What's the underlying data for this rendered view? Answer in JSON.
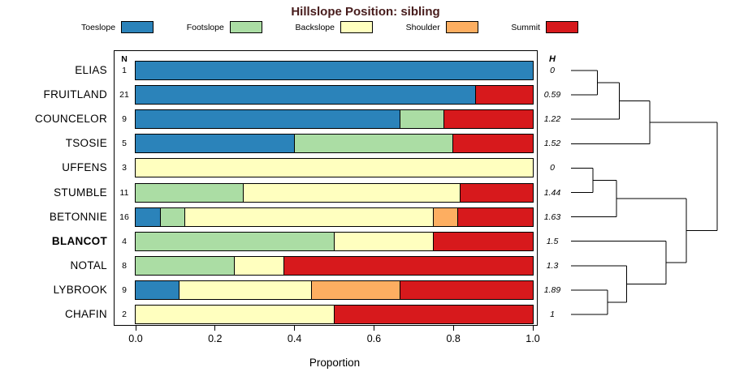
{
  "title": "Hillslope Position: sibling",
  "legend": [
    {
      "label": "Toeslope",
      "color": "#2B83BA"
    },
    {
      "label": "Footslope",
      "color": "#ABDDA4"
    },
    {
      "label": "Backslope",
      "color": "#FFFFBF"
    },
    {
      "label": "Shoulder",
      "color": "#FDAE61"
    },
    {
      "label": "Summit",
      "color": "#D7191C"
    }
  ],
  "axis": {
    "xlabel": "Proportion",
    "ticks": [
      0,
      0.2,
      0.4,
      0.6,
      0.8,
      1
    ],
    "n_header": "N",
    "h_header": "H"
  },
  "chart_data": {
    "type": "bar",
    "stacked": true,
    "orientation": "horizontal",
    "title": "Hillslope Position: sibling",
    "xlabel": "Proportion",
    "xlim": [
      0,
      1
    ],
    "series_names": [
      "Toeslope",
      "Footslope",
      "Backslope",
      "Shoulder",
      "Summit"
    ],
    "rows": [
      {
        "label": "ELIAS",
        "n": 1,
        "h": "0",
        "bold": false,
        "values": [
          1,
          0,
          0,
          0,
          0
        ]
      },
      {
        "label": "FRUITLAND",
        "n": 21,
        "h": "0.59",
        "bold": false,
        "values": [
          0.857,
          0,
          0,
          0,
          0.143
        ]
      },
      {
        "label": "COUNCELOR",
        "n": 9,
        "h": "1.22",
        "bold": false,
        "values": [
          0.667,
          0.111,
          0,
          0,
          0.222
        ]
      },
      {
        "label": "TSOSIE",
        "n": 5,
        "h": "1.52",
        "bold": false,
        "values": [
          0.4,
          0.4,
          0,
          0,
          0.2
        ]
      },
      {
        "label": "UFFENS",
        "n": 3,
        "h": "0",
        "bold": false,
        "values": [
          0,
          0,
          1,
          0,
          0
        ]
      },
      {
        "label": "STUMBLE",
        "n": 11,
        "h": "1.44",
        "bold": false,
        "values": [
          0,
          0.273,
          0.545,
          0,
          0.182
        ]
      },
      {
        "label": "BETONNIE",
        "n": 16,
        "h": "1.63",
        "bold": false,
        "values": [
          0.0625,
          0.0625,
          0.625,
          0.0625,
          0.1875
        ]
      },
      {
        "label": "BLANCOT",
        "n": 4,
        "h": "1.5",
        "bold": true,
        "values": [
          0,
          0.5,
          0.25,
          0,
          0.25
        ]
      },
      {
        "label": "NOTAL",
        "n": 8,
        "h": "1.3",
        "bold": false,
        "values": [
          0,
          0.25,
          0.125,
          0,
          0.625
        ]
      },
      {
        "label": "LYBROOK",
        "n": 9,
        "h": "1.89",
        "bold": false,
        "values": [
          0.111,
          0,
          0.333,
          0.222,
          0.334
        ]
      },
      {
        "label": "CHAFIN",
        "n": 2,
        "h": "1",
        "bold": false,
        "values": [
          0,
          0,
          0.5,
          0,
          0.5
        ]
      }
    ]
  },
  "dendrogram": {
    "merges": [
      {
        "a": 0,
        "b": 1,
        "h": 0.18
      },
      {
        "a": 11,
        "b": 2,
        "h": 0.33
      },
      {
        "a": 12,
        "b": 3,
        "h": 0.54
      },
      {
        "a": 4,
        "b": 5,
        "h": 0.15
      },
      {
        "a": 14,
        "b": 6,
        "h": 0.31
      },
      {
        "a": 9,
        "b": 10,
        "h": 0.25
      },
      {
        "a": 8,
        "b": 16,
        "h": 0.38
      },
      {
        "a": 7,
        "b": 17,
        "h": 0.65
      },
      {
        "a": 15,
        "b": 18,
        "h": 0.79
      },
      {
        "a": 13,
        "b": 19,
        "h": 1.0
      }
    ]
  }
}
